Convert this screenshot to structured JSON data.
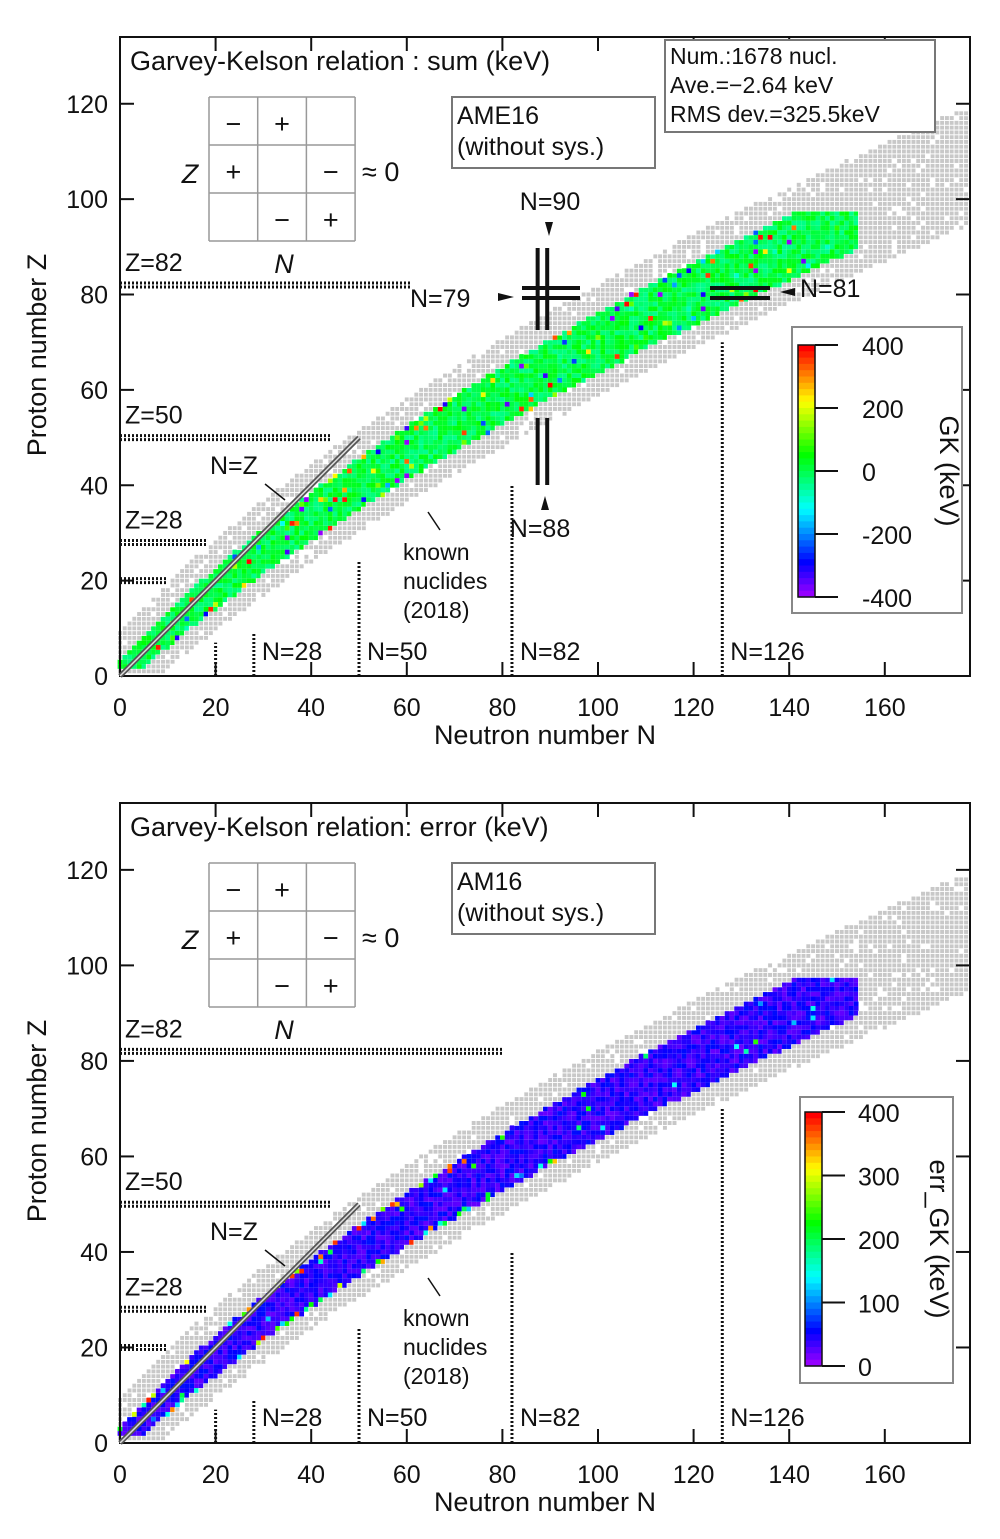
{
  "chart_data": [
    {
      "type": "heatmap",
      "title": "Garvey-Kelson relation : sum (keV)",
      "xlabel": "Neutron number N",
      "ylabel": "Proton number Z",
      "xlim": [
        0,
        178
      ],
      "ylim": [
        0,
        134
      ],
      "xticks": [
        "0",
        "20",
        "40",
        "60",
        "80",
        "100",
        "120",
        "140",
        "160"
      ],
      "yticks": [
        "0",
        "20",
        "40",
        "60",
        "80",
        "100",
        "120"
      ],
      "dataset_box": [
        "AME16",
        "(without sys.)"
      ],
      "stats_box": [
        "Num.:1678 nucl.",
        "Ave.=−2.64 keV",
        "RMS dev.=325.5keV"
      ],
      "inset": {
        "z_label": "Z",
        "n_label": "N",
        "cells": [
          "−",
          "+",
          "",
          "+",
          "",
          "−",
          "",
          "−",
          "+"
        ],
        "approx": "≈ 0"
      },
      "magic_labels": {
        "z82": "Z=82",
        "z50": "Z=50",
        "z28": "Z=28",
        "n28": "N=28",
        "n50": "N=50",
        "n82": "N=82",
        "n126": "N=126",
        "nz": "N=Z"
      },
      "known_label": [
        "known",
        "nuclides",
        "(2018)"
      ],
      "shell_labels": {
        "n90": "N=90",
        "n79": "N=79",
        "n88": "N=88",
        "n81": "N=81"
      },
      "colorbar": {
        "label": "GK (keV)",
        "range": [
          -400,
          400
        ],
        "ticks": [
          "400",
          "200",
          "0",
          "-200",
          "-400"
        ]
      },
      "colors": {
        "gray_known": "#c8c8c8",
        "dominant": "#22e03a"
      }
    },
    {
      "type": "heatmap",
      "title": "Garvey-Kelson relation: error (keV)",
      "xlabel": "Neutron number N",
      "ylabel": "Proton number Z",
      "xlim": [
        0,
        178
      ],
      "ylim": [
        0,
        134
      ],
      "xticks": [
        "0",
        "20",
        "40",
        "60",
        "80",
        "100",
        "120",
        "140",
        "160"
      ],
      "yticks": [
        "0",
        "20",
        "40",
        "60",
        "80",
        "100",
        "120"
      ],
      "dataset_box": [
        "AM16",
        "(without sys.)"
      ],
      "inset": {
        "z_label": "Z",
        "n_label": "N",
        "cells": [
          "−",
          "+",
          "",
          "+",
          "",
          "−",
          "",
          "−",
          "+"
        ],
        "approx": "≈ 0"
      },
      "magic_labels": {
        "z82": "Z=82",
        "z50": "Z=50",
        "z28": "Z=28",
        "n28": "N=28",
        "n50": "N=50",
        "n82": "N=82",
        "n126": "N=126",
        "nz": "N=Z"
      },
      "known_label": [
        "known",
        "nuclides",
        "(2018)"
      ],
      "colorbar": {
        "label": "err_GK (keV)",
        "range": [
          0,
          400
        ],
        "ticks": [
          "400",
          "300",
          "200",
          "100",
          "0"
        ]
      },
      "colors": {
        "gray_known": "#c8c8c8",
        "dominant": "#5a1cff"
      }
    }
  ]
}
